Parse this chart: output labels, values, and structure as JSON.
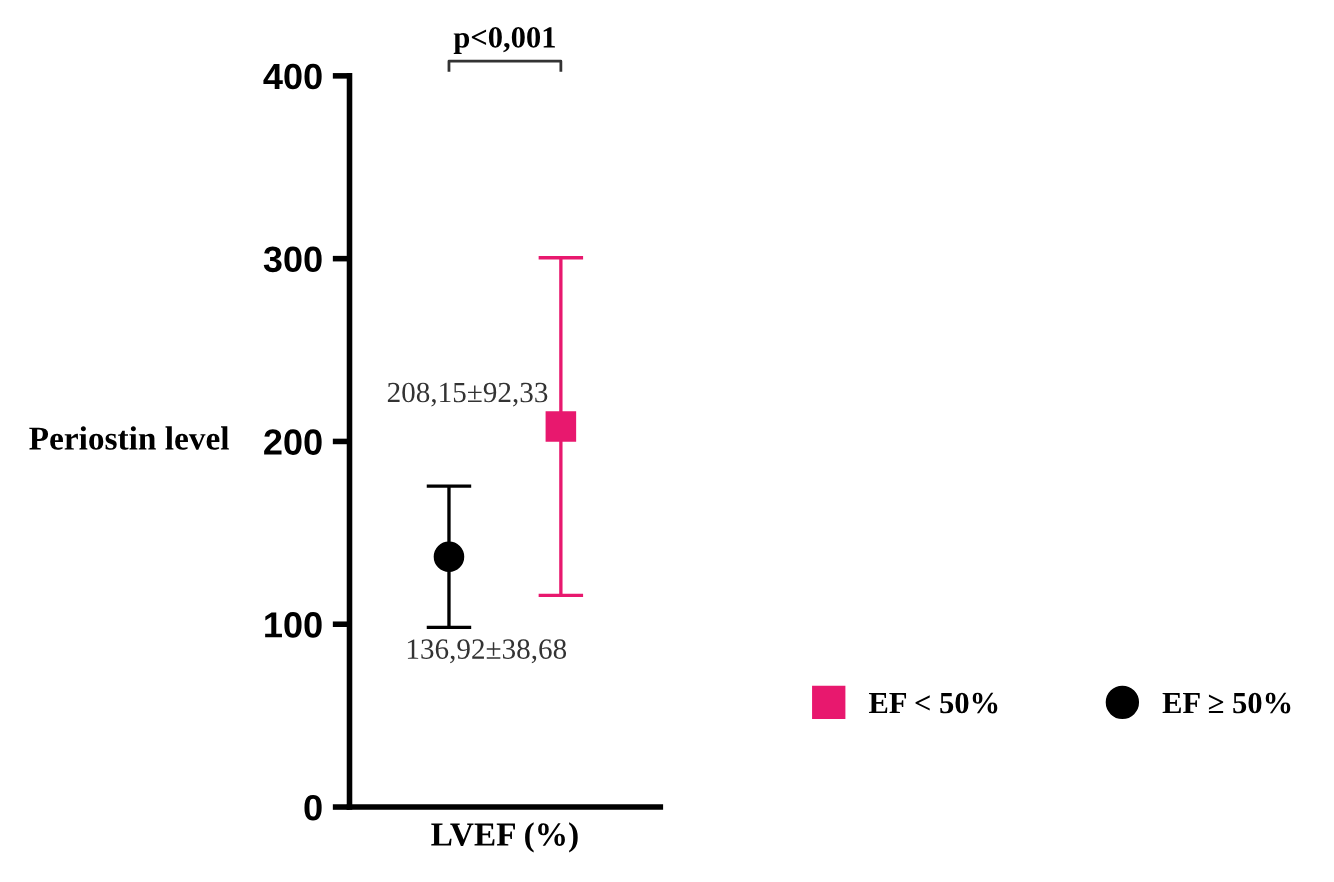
{
  "chart_data": {
    "type": "scatter",
    "ylabel": "Periostin level",
    "xlabel": "LVEF (%)",
    "categories": [
      null
    ],
    "series": [
      {
        "name": "EF ≥ 50%",
        "color": "#000000",
        "marker": "circle",
        "values": [
          136.92
        ],
        "errors": [
          38.68
        ],
        "value_labels": [
          "136,92±38,68"
        ]
      },
      {
        "name": "EF < 50%",
        "color": "#e8186e",
        "marker": "square",
        "values": [
          208.15
        ],
        "errors": [
          92.33
        ],
        "value_labels": [
          "208,15±92,33"
        ]
      }
    ],
    "ylim": [
      0,
      400
    ],
    "yticks": [
      0,
      100,
      200,
      300,
      400
    ],
    "annotations": [
      "p<0,001"
    ],
    "grid": false,
    "legend": "right"
  }
}
